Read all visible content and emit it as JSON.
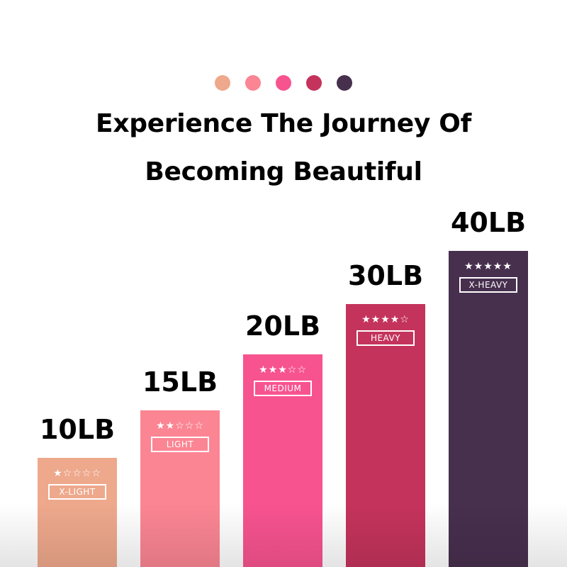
{
  "header": {
    "color_dots": [
      "#eea88c",
      "#fb8593",
      "#f7538f",
      "#c4335c",
      "#472f4e"
    ],
    "title_line1": "Experience The Journey Of",
    "title_line2": "Becoming Beautiful"
  },
  "chart_data": {
    "type": "bar",
    "categories": [
      "10LB",
      "15LB",
      "20LB",
      "30LB",
      "40LB"
    ],
    "values": [
      10,
      15,
      20,
      30,
      40
    ],
    "unit": "LB",
    "levels": [
      "X-LIGHT",
      "LIGHT",
      "MEDIUM",
      "HEAVY",
      "X-HEAVY"
    ],
    "star_ratings": [
      1,
      2,
      3,
      4,
      5
    ],
    "star_max": 5,
    "colors": [
      "#eea88c",
      "#fb8593",
      "#f7538f",
      "#c4335c",
      "#472f4e"
    ],
    "grid": false,
    "legend": "none"
  }
}
